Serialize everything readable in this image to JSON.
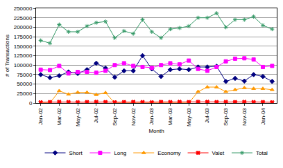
{
  "chart_data": {
    "type": "line",
    "x_label": "Month",
    "y_label": "# of Transactions",
    "categories": [
      "Jan-02",
      null,
      "Mar-02",
      null,
      "May-02",
      null,
      "Jul-02",
      null,
      "Sep-02",
      null,
      "Nov-02",
      null,
      "Jan-03",
      null,
      "Mar-03",
      null,
      "May-03",
      null,
      "Jul-03",
      null,
      "Sep-03",
      null,
      "Nov-03",
      null,
      "Jan-04",
      null
    ],
    "series": [
      {
        "name": "Short",
        "color": "#000080",
        "marker": "diamond",
        "values": [
          75000,
          67000,
          72000,
          82000,
          78000,
          88000,
          105000,
          92000,
          68000,
          85000,
          85000,
          125000,
          90000,
          70000,
          88000,
          90000,
          88000,
          95000,
          95000,
          97000,
          57000,
          65000,
          58000,
          75000,
          70000,
          57000
        ]
      },
      {
        "name": "Long",
        "color": "#FF00FF",
        "marker": "square",
        "values": [
          88000,
          87000,
          98000,
          78000,
          82000,
          82000,
          80000,
          85000,
          100000,
          105000,
          98000,
          95000,
          93000,
          100000,
          105000,
          102000,
          112000,
          90000,
          85000,
          95000,
          110000,
          117000,
          118000,
          115000,
          95000,
          98000
        ]
      },
      {
        "name": "Economy",
        "color": "#FF9900",
        "marker": "triangle",
        "values": [
          0,
          0,
          32000,
          23000,
          28000,
          28000,
          22000,
          27000,
          0,
          0,
          0,
          0,
          0,
          0,
          0,
          0,
          0,
          30000,
          42000,
          42000,
          30000,
          35000,
          40000,
          38000,
          38000,
          35000
        ]
      },
      {
        "name": "Valet",
        "color": "#FF0000",
        "marker": "x",
        "values": [
          2000,
          2500,
          3000,
          2500,
          2000,
          2500,
          3000,
          2500,
          2000,
          2500,
          3000,
          2500,
          2000,
          3000,
          2500,
          3000,
          2500,
          3000,
          3000,
          2500,
          3000,
          2500,
          3000,
          2500,
          2500,
          2000
        ]
      },
      {
        "name": "Total",
        "color": "#339966",
        "marker": "asterisk",
        "values": [
          165000,
          158000,
          207000,
          188000,
          188000,
          203000,
          212000,
          215000,
          172000,
          190000,
          183000,
          220000,
          188000,
          172000,
          195000,
          198000,
          203000,
          225000,
          225000,
          237000,
          200000,
          220000,
          220000,
          228000,
          205000,
          195000
        ]
      }
    ],
    "ylim": [
      0,
      250000
    ],
    "yticks": [
      0,
      25000,
      50000,
      75000,
      100000,
      125000,
      150000,
      175000,
      200000,
      225000,
      250000
    ],
    "grid": true,
    "legend": "bottom"
  }
}
